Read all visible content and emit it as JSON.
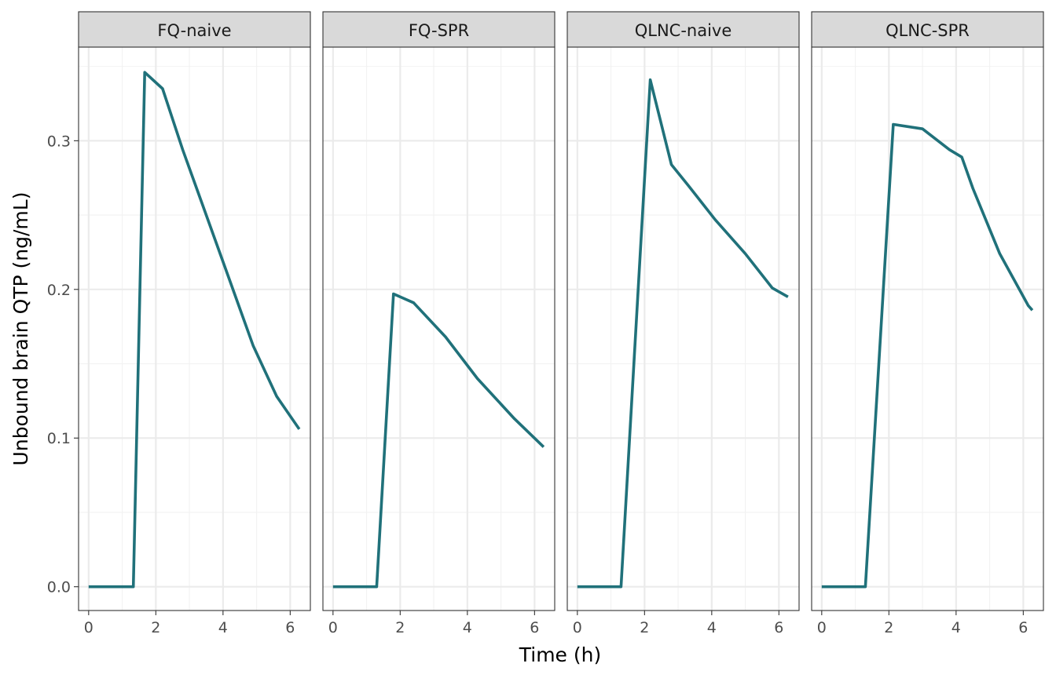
{
  "chart_data": {
    "type": "line",
    "xlabel": "Time (h)",
    "ylabel": "Unbound brain QTP (ng/mL)",
    "xlim": [
      -0.3,
      6.6
    ],
    "ylim": [
      -0.016,
      0.363
    ],
    "x_ticks": [
      0,
      2,
      4,
      6
    ],
    "x_tick_labels": [
      "0",
      "2",
      "4",
      "6"
    ],
    "y_ticks": [
      0.0,
      0.1,
      0.2,
      0.3
    ],
    "y_tick_labels": [
      "0.0",
      "0.1",
      "0.2",
      "0.3"
    ],
    "grid": true,
    "line_color": "#20717a",
    "panels": [
      {
        "name": "FQ-naive",
        "x": [
          0,
          1.33,
          1.67,
          2.2,
          2.8,
          3.5,
          4.2,
          4.9,
          5.6,
          6.27
        ],
        "y": [
          0,
          0,
          0.346,
          0.335,
          0.294,
          0.25,
          0.206,
          0.162,
          0.128,
          0.106
        ]
      },
      {
        "name": "FQ-SPR",
        "x": [
          0,
          1.3,
          1.8,
          2.4,
          3.35,
          4.3,
          5.4,
          6.27
        ],
        "y": [
          0,
          0,
          0.197,
          0.191,
          0.168,
          0.14,
          0.113,
          0.094
        ]
      },
      {
        "name": "QLNC-naive",
        "x": [
          0,
          1.3,
          2.17,
          2.8,
          3.3,
          4.1,
          5.0,
          5.8,
          6.27
        ],
        "y": [
          0,
          0,
          0.341,
          0.284,
          0.27,
          0.247,
          0.224,
          0.201,
          0.195
        ]
      },
      {
        "name": "QLNC-SPR",
        "x": [
          0,
          1.3,
          2.13,
          3.0,
          3.8,
          4.17,
          4.5,
          5.3,
          6.15,
          6.27
        ],
        "y": [
          0,
          0,
          0.311,
          0.308,
          0.294,
          0.289,
          0.268,
          0.224,
          0.189,
          0.186
        ]
      }
    ]
  }
}
